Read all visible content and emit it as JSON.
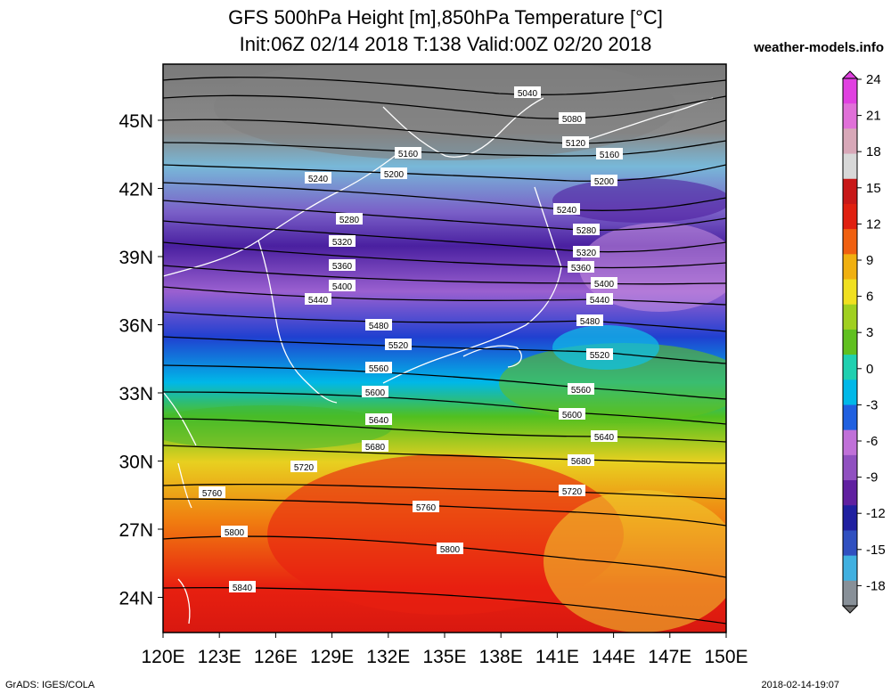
{
  "header": {
    "title_line1": "GFS 500hPa Height [m],850hPa Temperature [°C]",
    "title_line2": "Init:06Z 02/14 2018 T:138 Valid:00Z 02/20 2018",
    "site": "weather-models.info"
  },
  "footer": {
    "left": "GrADS: IGES/COLA",
    "right": "2018-02-14-19:07"
  },
  "axes": {
    "x_ticks": [
      "120E",
      "123E",
      "126E",
      "129E",
      "132E",
      "135E",
      "138E",
      "141E",
      "144E",
      "147E",
      "150E"
    ],
    "y_ticks": [
      "45N",
      "42N",
      "39N",
      "36N",
      "33N",
      "30N",
      "27N",
      "24N"
    ]
  },
  "colorbar": {
    "labels": [
      "24",
      "21",
      "18",
      "15",
      "12",
      "9",
      "6",
      "3",
      "0",
      "-3",
      "-6",
      "-9",
      "-12",
      "-15",
      "-18"
    ],
    "colors": [
      "#c0d0d8",
      "#88c8e8",
      "#40b0e0",
      "#3050c0",
      "#2020a0",
      "#6020a0",
      "#9050c0",
      "#c070d8",
      "#00b8e8",
      "#20d0b0",
      "#60c020",
      "#a0d020",
      "#f0e020",
      "#f0b010",
      "#f06010",
      "#e02010",
      "#c81818",
      "#d8d8d8",
      "#f0b0c8",
      "#e080d0",
      "#d040c0"
    ]
  },
  "contours": {
    "labels": [
      "5040",
      "5080",
      "5120",
      "5160",
      "5200",
      "5240",
      "5280",
      "5320",
      "5360",
      "5400",
      "5440",
      "5480",
      "5520",
      "5560",
      "5600",
      "5640",
      "5680",
      "5720",
      "5760",
      "5800",
      "5840"
    ]
  }
}
